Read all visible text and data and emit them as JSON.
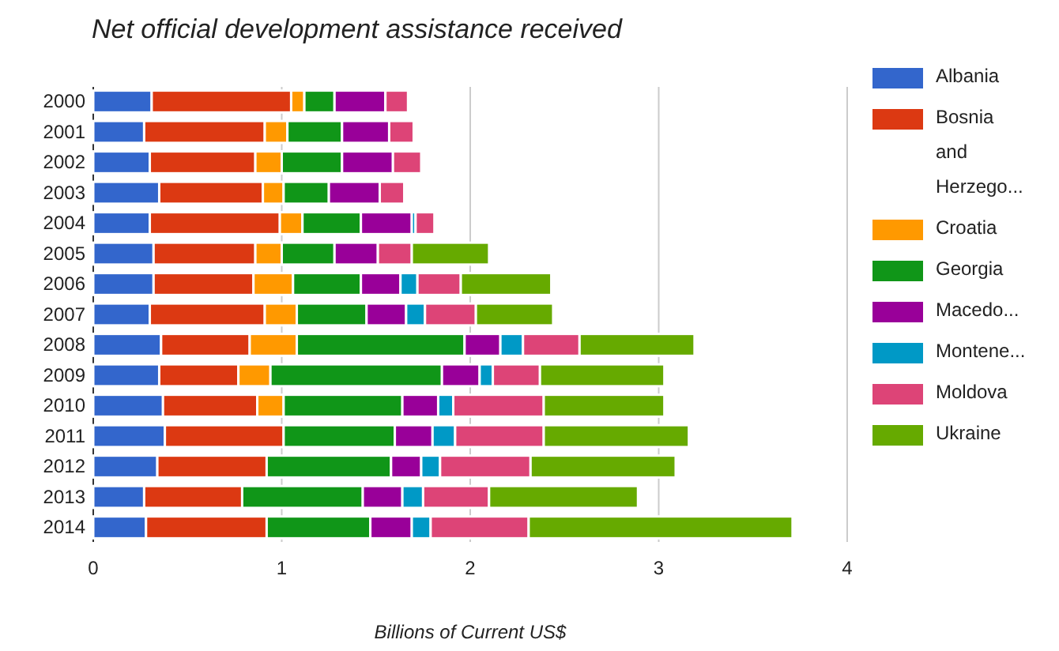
{
  "chart_data": {
    "type": "bar",
    "orientation": "horizontal",
    "stacked": true,
    "title": "Net official development assistance received",
    "xlabel": "Billions of Current US$",
    "categories": [
      "2000",
      "2001",
      "2002",
      "2003",
      "2004",
      "2005",
      "2006",
      "2007",
      "2008",
      "2009",
      "2010",
      "2011",
      "2012",
      "2013",
      "2014"
    ],
    "series": [
      {
        "name": "Albania",
        "color": "#3366cc",
        "values": [
          0.31,
          0.27,
          0.3,
          0.35,
          0.3,
          0.32,
          0.32,
          0.3,
          0.36,
          0.35,
          0.37,
          0.38,
          0.34,
          0.27,
          0.28
        ]
      },
      {
        "name": "Bosnia and Herzego...",
        "color": "#dc3912",
        "values": [
          0.74,
          0.64,
          0.56,
          0.55,
          0.69,
          0.54,
          0.53,
          0.61,
          0.47,
          0.42,
          0.5,
          0.63,
          0.58,
          0.52,
          0.64
        ]
      },
      {
        "name": "Croatia",
        "color": "#ff9900",
        "values": [
          0.07,
          0.12,
          0.14,
          0.11,
          0.12,
          0.14,
          0.21,
          0.17,
          0.25,
          0.17,
          0.14,
          null,
          null,
          null,
          null
        ]
      },
      {
        "name": "Georgia",
        "color": "#109618",
        "values": [
          0.16,
          0.29,
          0.32,
          0.24,
          0.31,
          0.28,
          0.36,
          0.37,
          0.89,
          0.91,
          0.63,
          0.59,
          0.66,
          0.64,
          0.55
        ]
      },
      {
        "name": "Macedo...",
        "color": "#990099",
        "values": [
          0.27,
          0.25,
          0.27,
          0.27,
          0.27,
          0.23,
          0.21,
          0.21,
          0.19,
          0.2,
          0.19,
          0.2,
          0.16,
          0.21,
          0.22
        ]
      },
      {
        "name": "Montene...",
        "color": "#0099c6",
        "values": [
          null,
          null,
          null,
          null,
          0.02,
          null,
          0.09,
          0.1,
          0.12,
          0.07,
          0.08,
          0.12,
          0.1,
          0.11,
          0.1
        ]
      },
      {
        "name": "Moldova",
        "color": "#dd4477",
        "values": [
          0.12,
          0.13,
          0.15,
          0.13,
          0.1,
          0.18,
          0.23,
          0.27,
          0.3,
          0.25,
          0.48,
          0.47,
          0.48,
          0.35,
          0.52
        ]
      },
      {
        "name": "Ukraine",
        "color": "#66aa00",
        "values": [
          null,
          null,
          null,
          null,
          null,
          0.41,
          0.48,
          0.41,
          0.61,
          0.66,
          0.64,
          0.77,
          0.77,
          0.79,
          1.4
        ]
      }
    ],
    "xlim": [
      0,
      4
    ],
    "xticks": [
      0,
      1,
      2,
      3,
      4
    ],
    "grid": "x",
    "legend": "right"
  }
}
